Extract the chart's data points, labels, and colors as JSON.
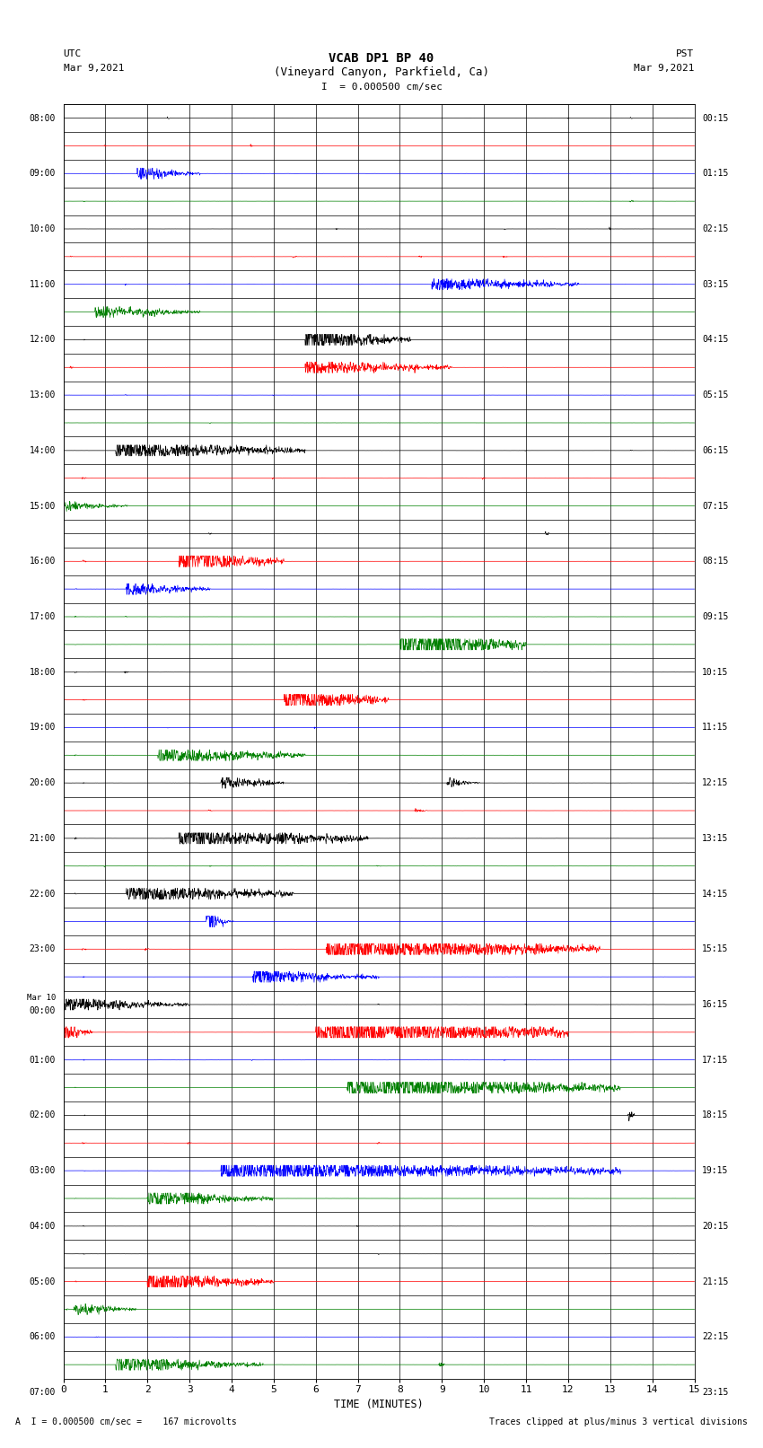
{
  "title_line1": "VCAB DP1 BP 40",
  "title_line2": "(Vineyard Canyon, Parkfield, Ca)",
  "scale_text": "I  = 0.000500 cm/sec",
  "left_header_line1": "UTC",
  "left_header_line2": "Mar 9,2021",
  "right_header_line1": "PST",
  "right_header_line2": "Mar 9,2021",
  "xlabel": "TIME (MINUTES)",
  "bottom_left": "A  I = 0.000500 cm/sec =    167 microvolts",
  "bottom_right": "Traces clipped at plus/minus 3 vertical divisions",
  "utc_labels": [
    "08:00",
    "09:00",
    "10:00",
    "11:00",
    "12:00",
    "13:00",
    "14:00",
    "15:00",
    "16:00",
    "17:00",
    "18:00",
    "19:00",
    "20:00",
    "21:00",
    "22:00",
    "23:00",
    "Mar 10\n00:00",
    "01:00",
    "02:00",
    "03:00",
    "04:00",
    "05:00",
    "06:00",
    "07:00"
  ],
  "pst_labels": [
    "00:15",
    "01:15",
    "02:15",
    "03:15",
    "04:15",
    "05:15",
    "06:15",
    "07:15",
    "08:15",
    "09:15",
    "10:15",
    "11:15",
    "12:15",
    "13:15",
    "14:15",
    "15:15",
    "16:15",
    "17:15",
    "18:15",
    "19:15",
    "20:15",
    "21:15",
    "22:15",
    "23:15"
  ],
  "n_rows": 46,
  "x_min": 0,
  "x_max": 15
}
